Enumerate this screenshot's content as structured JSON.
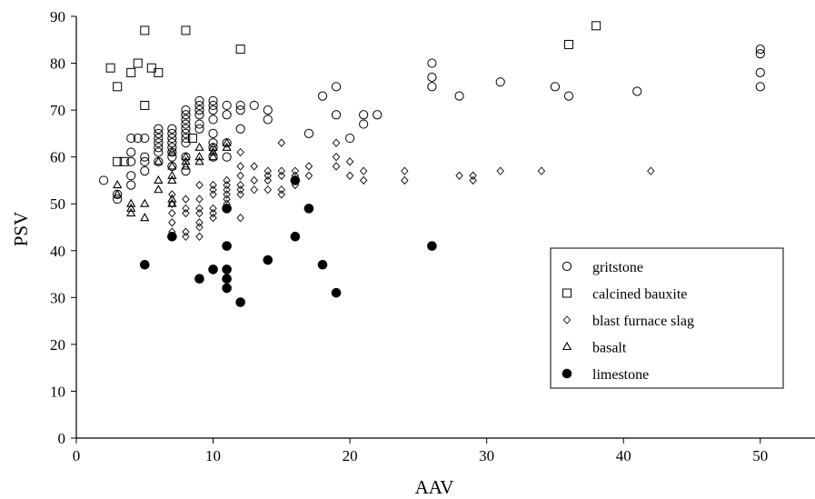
{
  "chart_data": {
    "type": "scatter",
    "title": "",
    "xlabel": "AAV",
    "ylabel": "PSV",
    "xlim": [
      0,
      54
    ],
    "ylim": [
      0,
      90
    ],
    "x_ticks": [
      0,
      10,
      20,
      30,
      40,
      50
    ],
    "y_ticks": [
      0,
      10,
      20,
      30,
      40,
      50,
      60,
      70,
      80,
      90
    ],
    "grid": false,
    "legend_position": "right",
    "series": [
      {
        "name": "gritstone",
        "marker": "circle-open",
        "points": [
          [
            2,
            55
          ],
          [
            3,
            51
          ],
          [
            3,
            52
          ],
          [
            4,
            54
          ],
          [
            4,
            56
          ],
          [
            4,
            59
          ],
          [
            4,
            61
          ],
          [
            4,
            64
          ],
          [
            4.5,
            64
          ],
          [
            5,
            57
          ],
          [
            5,
            59
          ],
          [
            5,
            60
          ],
          [
            5,
            64
          ],
          [
            6,
            59
          ],
          [
            6,
            61
          ],
          [
            6,
            62
          ],
          [
            6,
            63
          ],
          [
            6,
            64
          ],
          [
            6,
            65
          ],
          [
            6,
            66
          ],
          [
            7,
            58
          ],
          [
            7,
            60
          ],
          [
            7,
            61
          ],
          [
            7,
            62
          ],
          [
            7,
            63
          ],
          [
            7,
            64
          ],
          [
            7,
            65
          ],
          [
            7,
            66
          ],
          [
            8,
            57
          ],
          [
            8,
            60
          ],
          [
            8,
            63
          ],
          [
            8,
            64
          ],
          [
            8,
            65
          ],
          [
            8,
            66
          ],
          [
            8,
            67
          ],
          [
            8,
            68
          ],
          [
            8,
            69
          ],
          [
            8,
            70
          ],
          [
            9,
            66
          ],
          [
            9,
            67
          ],
          [
            9,
            69
          ],
          [
            9,
            70
          ],
          [
            9,
            71
          ],
          [
            9,
            72
          ],
          [
            10,
            60
          ],
          [
            10,
            62
          ],
          [
            10,
            63
          ],
          [
            10,
            65
          ],
          [
            10,
            68
          ],
          [
            10,
            70
          ],
          [
            10,
            71
          ],
          [
            10,
            72
          ],
          [
            11,
            60
          ],
          [
            11,
            63
          ],
          [
            11,
            69
          ],
          [
            11,
            71
          ],
          [
            12,
            66
          ],
          [
            12,
            70
          ],
          [
            12,
            71
          ],
          [
            13,
            71
          ],
          [
            14,
            68
          ],
          [
            14,
            70
          ],
          [
            17,
            65
          ],
          [
            18,
            73
          ],
          [
            19,
            69
          ],
          [
            19,
            75
          ],
          [
            20,
            64
          ],
          [
            21,
            67
          ],
          [
            21,
            69
          ],
          [
            22,
            69
          ],
          [
            26,
            75
          ],
          [
            26,
            77
          ],
          [
            26,
            80
          ],
          [
            28,
            73
          ],
          [
            31,
            76
          ],
          [
            35,
            75
          ],
          [
            36,
            73
          ],
          [
            41,
            74
          ],
          [
            50,
            75
          ],
          [
            50,
            78
          ],
          [
            50,
            82
          ],
          [
            50,
            83
          ]
        ]
      },
      {
        "name": "calcined bauxite",
        "marker": "square-open",
        "points": [
          [
            2.5,
            79
          ],
          [
            3,
            75
          ],
          [
            3,
            59
          ],
          [
            3.5,
            59
          ],
          [
            4,
            78
          ],
          [
            4.5,
            80
          ],
          [
            5,
            71
          ],
          [
            5,
            87
          ],
          [
            5.5,
            79
          ],
          [
            6,
            78
          ],
          [
            8,
            87
          ],
          [
            8.5,
            64
          ],
          [
            12,
            83
          ],
          [
            36,
            84
          ],
          [
            38,
            88
          ]
        ]
      },
      {
        "name": "blast furnace slag",
        "marker": "diamond-open",
        "points": [
          [
            7,
            44
          ],
          [
            7,
            46
          ],
          [
            7,
            48
          ],
          [
            7,
            50
          ],
          [
            7,
            52
          ],
          [
            8,
            43
          ],
          [
            8,
            44
          ],
          [
            8,
            48
          ],
          [
            8,
            49
          ],
          [
            8,
            51
          ],
          [
            9,
            43
          ],
          [
            9,
            45
          ],
          [
            9,
            46
          ],
          [
            9,
            48
          ],
          [
            9,
            49
          ],
          [
            9,
            51
          ],
          [
            9,
            54
          ],
          [
            10,
            47
          ],
          [
            10,
            48
          ],
          [
            10,
            49
          ],
          [
            10,
            52
          ],
          [
            10,
            53
          ],
          [
            10,
            54
          ],
          [
            11,
            50
          ],
          [
            11,
            51
          ],
          [
            11,
            52
          ],
          [
            11,
            53
          ],
          [
            11,
            54
          ],
          [
            11,
            55
          ],
          [
            12,
            47
          ],
          [
            12,
            52
          ],
          [
            12,
            53
          ],
          [
            12,
            54
          ],
          [
            12,
            56
          ],
          [
            12,
            58
          ],
          [
            12,
            61
          ],
          [
            13,
            53
          ],
          [
            13,
            55
          ],
          [
            13,
            58
          ],
          [
            14,
            53
          ],
          [
            14,
            55
          ],
          [
            14,
            56
          ],
          [
            14,
            57
          ],
          [
            15,
            52
          ],
          [
            15,
            53
          ],
          [
            15,
            56
          ],
          [
            15,
            57
          ],
          [
            15,
            63
          ],
          [
            16,
            54
          ],
          [
            16,
            56
          ],
          [
            16,
            57
          ],
          [
            17,
            56
          ],
          [
            17,
            58
          ],
          [
            19,
            58
          ],
          [
            19,
            60
          ],
          [
            19,
            63
          ],
          [
            20,
            56
          ],
          [
            20,
            59
          ],
          [
            21,
            55
          ],
          [
            21,
            57
          ],
          [
            24,
            55
          ],
          [
            24,
            57
          ],
          [
            28,
            56
          ],
          [
            29,
            55
          ],
          [
            29,
            56
          ],
          [
            31,
            57
          ],
          [
            34,
            57
          ],
          [
            42,
            57
          ]
        ]
      },
      {
        "name": "basalt",
        "marker": "triangle-open",
        "points": [
          [
            3,
            54
          ],
          [
            3,
            52
          ],
          [
            4,
            48
          ],
          [
            4,
            49
          ],
          [
            4,
            50
          ],
          [
            5,
            47
          ],
          [
            5,
            50
          ],
          [
            6,
            53
          ],
          [
            6,
            55
          ],
          [
            6,
            59
          ],
          [
            7,
            50
          ],
          [
            7,
            51
          ],
          [
            7,
            55
          ],
          [
            7,
            56
          ],
          [
            7,
            58
          ],
          [
            7,
            61
          ],
          [
            8,
            58
          ],
          [
            8,
            59
          ],
          [
            8,
            60
          ],
          [
            9,
            59
          ],
          [
            9,
            60
          ],
          [
            9,
            62
          ],
          [
            10,
            60
          ],
          [
            10,
            61
          ],
          [
            10,
            62
          ],
          [
            11,
            62
          ],
          [
            11,
            63
          ]
        ]
      },
      {
        "name": "limestone",
        "marker": "circle-filled",
        "points": [
          [
            5,
            37
          ],
          [
            7,
            43
          ],
          [
            9,
            34
          ],
          [
            10,
            36
          ],
          [
            11,
            49
          ],
          [
            11,
            41
          ],
          [
            11,
            36
          ],
          [
            11,
            34
          ],
          [
            11,
            32
          ],
          [
            12,
            29
          ],
          [
            14,
            38
          ],
          [
            16,
            43
          ],
          [
            16,
            55
          ],
          [
            17,
            49
          ],
          [
            18,
            37
          ],
          [
            19,
            31
          ],
          [
            26,
            41
          ]
        ]
      }
    ]
  }
}
